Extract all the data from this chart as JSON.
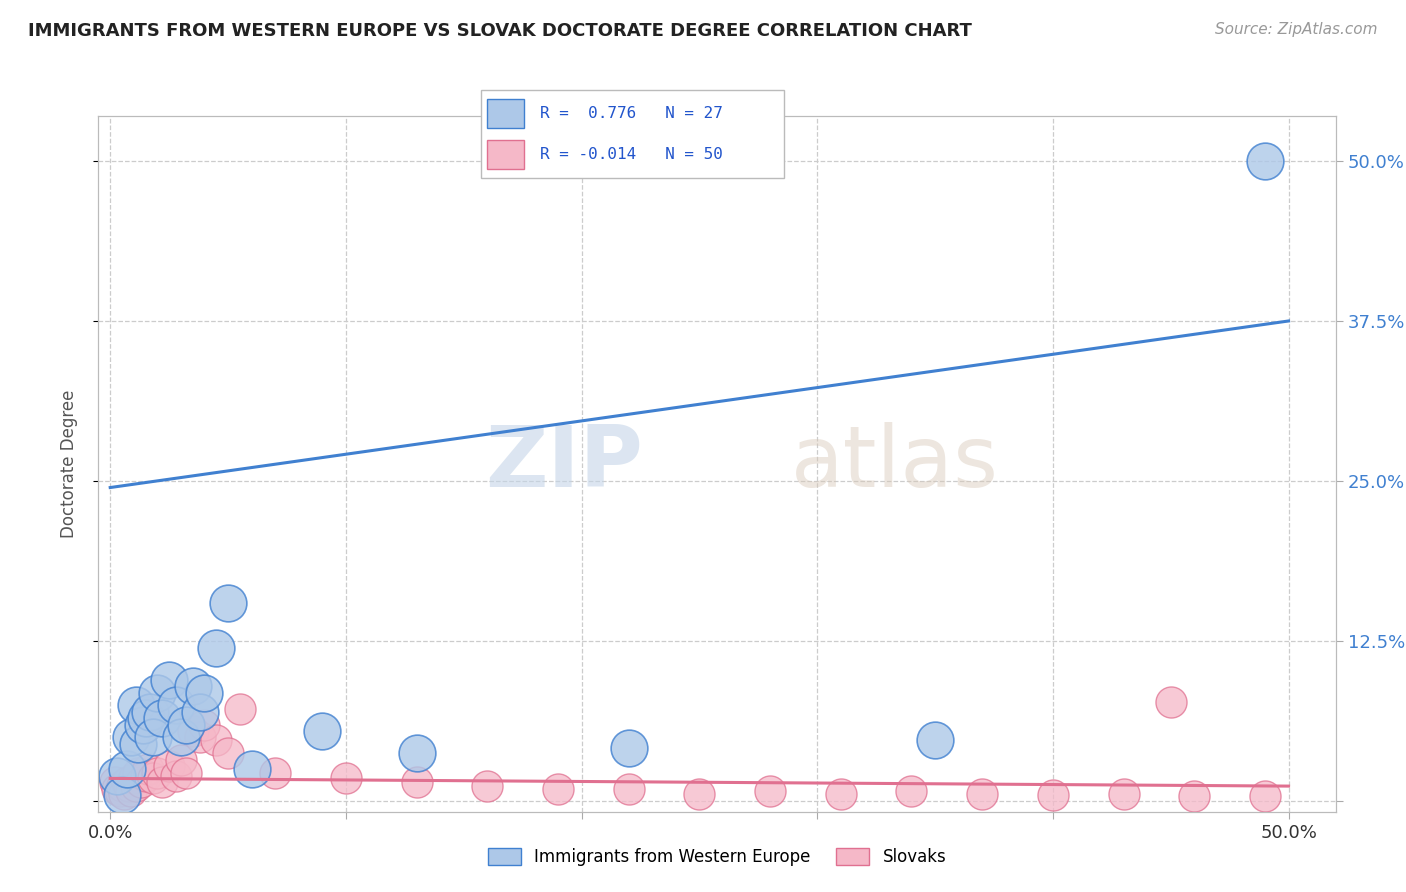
{
  "title": "IMMIGRANTS FROM WESTERN EUROPE VS SLOVAK DOCTORATE DEGREE CORRELATION CHART",
  "source": "Source: ZipAtlas.com",
  "ylabel": "Doctorate Degree",
  "x_ticks": [
    0.0,
    0.1,
    0.2,
    0.3,
    0.4,
    0.5
  ],
  "y_ticks_right": [
    0.0,
    0.125,
    0.25,
    0.375,
    0.5
  ],
  "xlim": [
    -0.005,
    0.52
  ],
  "ylim": [
    -0.008,
    0.535
  ],
  "blue_color": "#adc8e8",
  "blue_line_color": "#4080d0",
  "pink_color": "#f5b8c8",
  "pink_line_color": "#e07090",
  "blue_scatter_x": [
    0.003,
    0.005,
    0.007,
    0.009,
    0.011,
    0.012,
    0.014,
    0.015,
    0.017,
    0.018,
    0.02,
    0.022,
    0.025,
    0.028,
    0.03,
    0.032,
    0.035,
    0.038,
    0.04,
    0.045,
    0.05,
    0.06,
    0.09,
    0.13,
    0.22,
    0.35,
    0.49
  ],
  "blue_scatter_y": [
    0.02,
    0.005,
    0.025,
    0.05,
    0.075,
    0.045,
    0.06,
    0.065,
    0.07,
    0.05,
    0.085,
    0.065,
    0.095,
    0.075,
    0.05,
    0.06,
    0.09,
    0.07,
    0.085,
    0.12,
    0.155,
    0.025,
    0.055,
    0.038,
    0.042,
    0.048,
    0.5
  ],
  "pink_scatter_x": [
    0.002,
    0.003,
    0.004,
    0.005,
    0.006,
    0.007,
    0.008,
    0.009,
    0.01,
    0.011,
    0.012,
    0.013,
    0.015,
    0.016,
    0.018,
    0.02,
    0.022,
    0.025,
    0.028,
    0.03,
    0.032,
    0.035,
    0.038,
    0.04,
    0.045,
    0.05,
    0.055,
    0.07,
    0.1,
    0.13,
    0.16,
    0.19,
    0.22,
    0.25,
    0.28,
    0.31,
    0.34,
    0.37,
    0.4,
    0.43,
    0.46,
    0.49
  ],
  "pink_scatter_y": [
    0.015,
    0.01,
    0.008,
    0.012,
    0.006,
    0.015,
    0.012,
    0.008,
    0.018,
    0.012,
    0.022,
    0.015,
    0.02,
    0.025,
    0.018,
    0.022,
    0.015,
    0.028,
    0.02,
    0.032,
    0.022,
    0.055,
    0.05,
    0.06,
    0.048,
    0.038,
    0.072,
    0.022,
    0.018,
    0.015,
    0.012,
    0.01,
    0.01,
    0.006,
    0.008,
    0.006,
    0.008,
    0.006,
    0.005,
    0.006,
    0.004,
    0.004
  ],
  "pink_outlier_x": [
    0.45
  ],
  "pink_outlier_y": [
    0.078
  ],
  "blue_trend_x": [
    0.0,
    0.5
  ],
  "blue_trend_y": [
    0.245,
    0.375
  ],
  "pink_trend_x": [
    0.0,
    0.5
  ],
  "pink_trend_y": [
    0.018,
    0.012
  ],
  "watermark_zip": "ZIP",
  "watermark_atlas": "atlas",
  "background_color": "#ffffff",
  "grid_color": "#cccccc"
}
